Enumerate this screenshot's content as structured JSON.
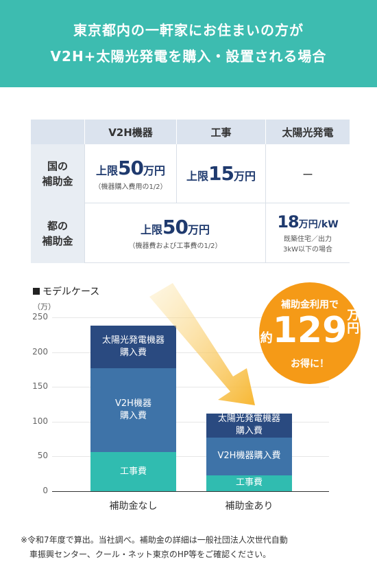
{
  "banner": {
    "line1": "東京都内の一軒家にお住まいの方が",
    "line2": "V2H+太陽光発電を購入・設置される場合"
  },
  "table": {
    "headers": [
      "V2H機器",
      "工事",
      "太陽光発電"
    ],
    "rows": [
      {
        "label_line1": "国の",
        "label_line2": "補助金",
        "v2h": {
          "prefix": "上限",
          "amount": "50",
          "unit": "万円",
          "note": "（機器購入費用の1/2）"
        },
        "construction": {
          "prefix": "上限",
          "amount": "15",
          "unit": "万円"
        },
        "solar": "ー"
      },
      {
        "label_line1": "都の",
        "label_line2": "補助金",
        "combined": {
          "prefix": "上限",
          "amount": "50",
          "unit": "万円",
          "note": "（機器費および工事費の1/2）"
        },
        "solar": {
          "amount": "18",
          "unit": "万円/kW",
          "note1": "既築住宅／出力",
          "note2": "3kW以下の場合"
        }
      }
    ]
  },
  "chart": {
    "legend": "モデルケース",
    "unit_label": "（万）",
    "y_ticks": [
      "250",
      "200",
      "150",
      "100",
      "50",
      "0"
    ],
    "badge": {
      "line1": "補助金利用で",
      "prefix": "約",
      "amount": "129",
      "unit_top": "万",
      "unit_bottom": "円",
      "line3": "お得に！"
    },
    "colors": {
      "solar": "#2a4a80",
      "v2h": "#3e73a8",
      "construction": "#30bcb0",
      "arrow": "#f7b733",
      "badge": "#f59a17"
    }
  },
  "chart_data": {
    "type": "bar",
    "stacked": true,
    "categories": [
      "補助金なし",
      "補助金あり"
    ],
    "series": [
      {
        "name": "工事費",
        "label_lines": [
          "工事費"
        ],
        "values": [
          56,
          23
        ]
      },
      {
        "name": "V2H機器購入費",
        "label_lines_0": [
          "V2H機器",
          "購入費"
        ],
        "label_lines": [
          "V2H機器購入費"
        ],
        "values": [
          121,
          54
        ]
      },
      {
        "name": "太陽光発電機器購入費",
        "label_lines": [
          "太陽光発電機器",
          "購入費"
        ],
        "values": [
          61,
          35
        ]
      }
    ],
    "ylim": [
      0,
      250
    ],
    "yticks": [
      0,
      50,
      100,
      150,
      200,
      250
    ],
    "ylabel": "（万）",
    "title": "モデルケース"
  },
  "footnote": {
    "line1": "※令和7年度で算出。当社調べ。補助金の詳細は一般社団法人次世代自動",
    "line2": "車振興センター、クール・ネット東京のHP等をご確認ください。"
  }
}
